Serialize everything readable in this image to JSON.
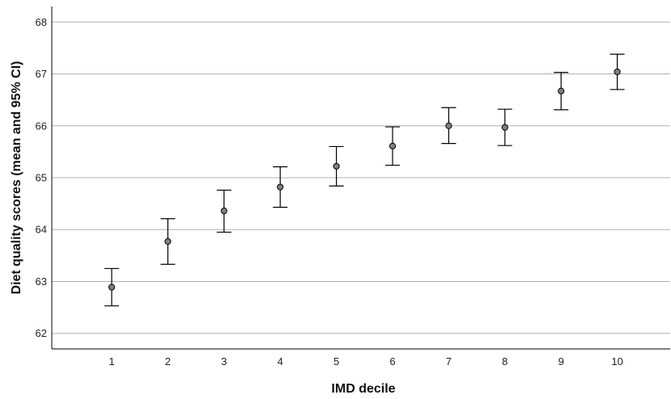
{
  "chart_data": {
    "type": "scatter",
    "title": "",
    "xlabel": "IMD decile",
    "ylabel": "Diet quality scores (mean and 95% CI)",
    "categories": [
      "1",
      "2",
      "3",
      "4",
      "5",
      "6",
      "7",
      "8",
      "9",
      "10"
    ],
    "series": [
      {
        "values": [
          62.89,
          63.77,
          64.36,
          64.82,
          65.22,
          65.61,
          66.0,
          65.97,
          66.67,
          67.04
        ],
        "ci_lower": [
          62.53,
          63.33,
          63.95,
          64.43,
          64.84,
          65.24,
          65.66,
          65.62,
          66.31,
          66.7
        ],
        "ci_upper": [
          63.25,
          64.21,
          64.76,
          65.21,
          65.6,
          65.98,
          66.35,
          66.32,
          67.03,
          67.38
        ]
      }
    ],
    "ylim": [
      61.7,
      68.3
    ],
    "yticks": [
      "62",
      "63",
      "64",
      "65",
      "66",
      "67",
      "68"
    ],
    "grid": "horizontal",
    "colors": {
      "marker_fill": "#7f7f7f",
      "line": "#000000",
      "grid": "#b0b0b0"
    }
  }
}
